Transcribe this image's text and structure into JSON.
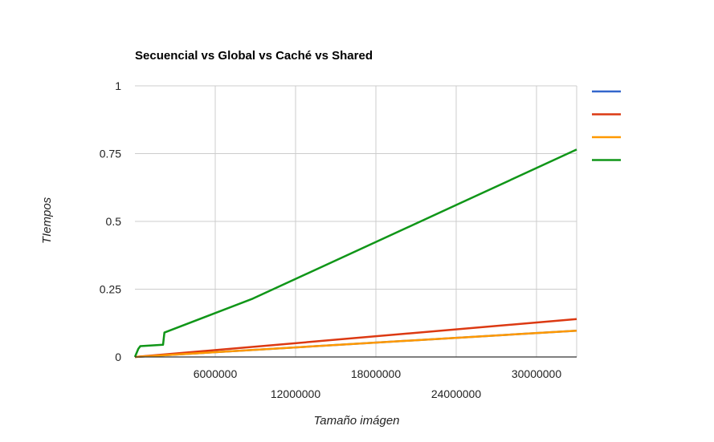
{
  "chart_data": {
    "type": "line",
    "title": "Secuencial vs Global vs Caché vs Shared",
    "xlabel": "Tamaño imágen",
    "ylabel": "TIempos",
    "xlim": [
      0,
      33000000
    ],
    "ylim": [
      0,
      1
    ],
    "x_ticks": [
      6000000,
      12000000,
      18000000,
      24000000,
      30000000
    ],
    "x_tick_labels": [
      "6000000",
      "12000000",
      "18000000",
      "24000000",
      "30000000"
    ],
    "y_ticks": [
      0,
      0.25,
      0.5,
      0.75,
      1
    ],
    "y_tick_labels": [
      "0",
      "0.25",
      "0.5",
      "0.75",
      "1"
    ],
    "grid": true,
    "legend_position": "right",
    "series": [
      {
        "color": "#3366cc",
        "points": [
          [
            0,
            0
          ],
          [
            33000000,
            0.097
          ]
        ]
      },
      {
        "color": "#dc3912",
        "points": [
          [
            0,
            0
          ],
          [
            33000000,
            0.14
          ]
        ]
      },
      {
        "color": "#ff9900",
        "points": [
          [
            0,
            0
          ],
          [
            33000000,
            0.097
          ]
        ]
      },
      {
        "color": "#109618",
        "points": [
          [
            0,
            0
          ],
          [
            250000,
            0.03
          ],
          [
            400000,
            0.04
          ],
          [
            2100000,
            0.045
          ],
          [
            2200000,
            0.09
          ],
          [
            8800000,
            0.215
          ],
          [
            33000000,
            0.765
          ]
        ]
      }
    ]
  }
}
